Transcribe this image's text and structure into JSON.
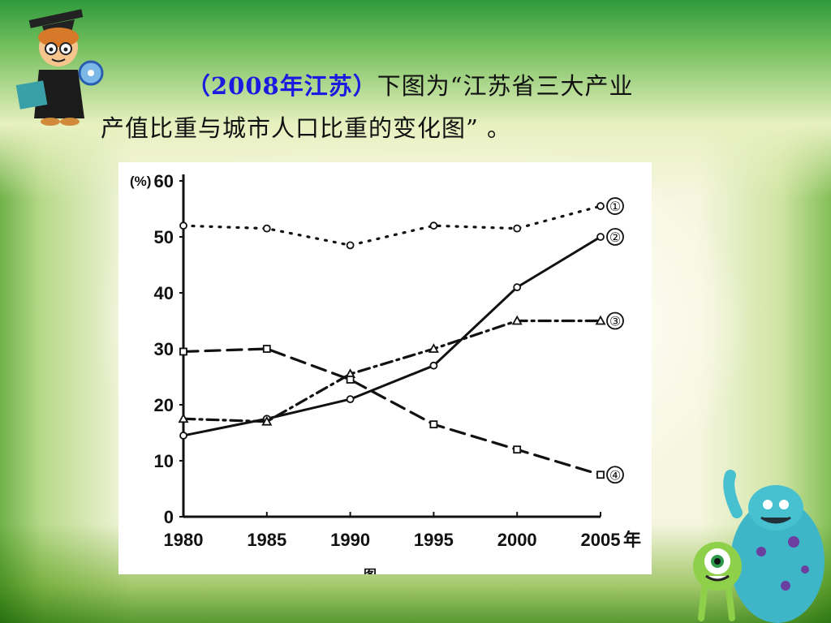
{
  "slide": {
    "title_source": "（2008年江苏）",
    "title_text_1": "下图为“江苏省三大产业",
    "title_text_2": "产值比重与城市人口比重的变化图” 。",
    "figure_caption_partial": "图"
  },
  "chart_data": {
    "type": "line",
    "title": "",
    "xlabel": "",
    "ylabel": "(%)",
    "x_unit_label": "年",
    "categories": [
      "1980",
      "1985",
      "1990",
      "1995",
      "2000",
      "2005"
    ],
    "ylim": [
      0,
      60
    ],
    "yticks": [
      0,
      10,
      20,
      30,
      40,
      50,
      60
    ],
    "grid": false,
    "series": [
      {
        "name": "①",
        "style": "dotted",
        "marker": "circle",
        "values": [
          52,
          51.5,
          48.5,
          52,
          51.5,
          55.5
        ]
      },
      {
        "name": "②",
        "style": "solid",
        "marker": "circle",
        "values": [
          14.5,
          17.5,
          21,
          27,
          41,
          50
        ]
      },
      {
        "name": "③",
        "style": "dashdot",
        "marker": "triangle",
        "values": [
          17.5,
          17,
          25.5,
          30,
          35,
          35
        ]
      },
      {
        "name": "④",
        "style": "dashed",
        "marker": "square",
        "values": [
          29.5,
          30,
          24.5,
          16.5,
          12,
          7.5
        ]
      }
    ]
  }
}
